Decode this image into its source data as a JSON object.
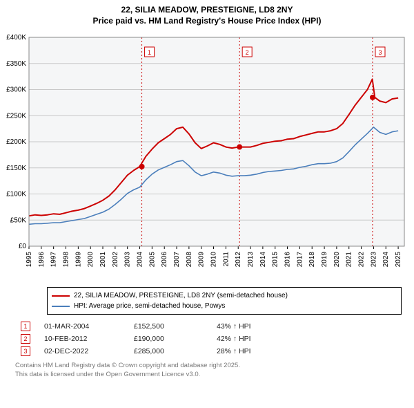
{
  "title_line1": "22, SILIA MEADOW, PRESTEIGNE, LD8 2NY",
  "title_line2": "Price paid vs. HM Land Registry's House Price Index (HPI)",
  "chart": {
    "type": "line",
    "plot_bg": "#f5f6f7",
    "grid_color": "#c8c8c8",
    "x_min": 1995,
    "x_max": 2025.5,
    "y_min": 0,
    "y_max": 400000,
    "y_ticks": [
      0,
      50000,
      100000,
      150000,
      200000,
      250000,
      300000,
      350000,
      400000
    ],
    "y_tick_labels": [
      "£0",
      "£50K",
      "£100K",
      "£150K",
      "£200K",
      "£250K",
      "£300K",
      "£350K",
      "£400K"
    ],
    "x_ticks": [
      1995,
      1996,
      1997,
      1998,
      1999,
      2000,
      2001,
      2002,
      2003,
      2004,
      2005,
      2006,
      2007,
      2008,
      2009,
      2010,
      2011,
      2012,
      2013,
      2014,
      2015,
      2016,
      2017,
      2018,
      2019,
      2020,
      2021,
      2022,
      2023,
      2024,
      2025
    ],
    "series": [
      {
        "name": "22, SILIA MEADOW, PRESTEIGNE, LD8 2NY (semi-detached house)",
        "color": "#cc0000",
        "width": 2,
        "data": [
          [
            1995,
            58000
          ],
          [
            1995.5,
            60000
          ],
          [
            1996,
            59000
          ],
          [
            1996.5,
            60000
          ],
          [
            1997,
            62000
          ],
          [
            1997.5,
            61000
          ],
          [
            1998,
            64000
          ],
          [
            1998.5,
            67000
          ],
          [
            1999,
            69000
          ],
          [
            1999.5,
            72000
          ],
          [
            2000,
            77000
          ],
          [
            2000.5,
            82000
          ],
          [
            2001,
            88000
          ],
          [
            2001.5,
            96000
          ],
          [
            2002,
            108000
          ],
          [
            2002.5,
            122000
          ],
          [
            2003,
            136000
          ],
          [
            2003.5,
            145000
          ],
          [
            2004,
            152500
          ],
          [
            2004.5,
            172000
          ],
          [
            2005,
            186000
          ],
          [
            2005.5,
            198000
          ],
          [
            2006,
            206000
          ],
          [
            2006.5,
            214000
          ],
          [
            2007,
            225000
          ],
          [
            2007.5,
            228000
          ],
          [
            2008,
            215000
          ],
          [
            2008.5,
            198000
          ],
          [
            2009,
            187000
          ],
          [
            2009.5,
            192000
          ],
          [
            2010,
            198000
          ],
          [
            2010.5,
            195000
          ],
          [
            2011,
            190000
          ],
          [
            2011.5,
            188000
          ],
          [
            2012,
            190000
          ],
          [
            2012.5,
            190000
          ],
          [
            2013,
            190000
          ],
          [
            2013.5,
            193000
          ],
          [
            2014,
            197000
          ],
          [
            2014.5,
            199000
          ],
          [
            2015,
            201000
          ],
          [
            2015.5,
            202000
          ],
          [
            2016,
            205000
          ],
          [
            2016.5,
            206000
          ],
          [
            2017,
            210000
          ],
          [
            2017.5,
            213000
          ],
          [
            2018,
            216000
          ],
          [
            2018.5,
            219000
          ],
          [
            2019,
            219000
          ],
          [
            2019.5,
            221000
          ],
          [
            2020,
            225000
          ],
          [
            2020.5,
            235000
          ],
          [
            2021,
            252000
          ],
          [
            2021.5,
            270000
          ],
          [
            2022,
            285000
          ],
          [
            2022.5,
            300000
          ],
          [
            2022.9,
            320000
          ],
          [
            2023.1,
            285000
          ],
          [
            2023.5,
            278000
          ],
          [
            2024,
            275000
          ],
          [
            2024.5,
            282000
          ],
          [
            2025,
            284000
          ]
        ]
      },
      {
        "name": "HPI: Average price, semi-detached house, Powys",
        "color": "#4a7ebb",
        "width": 1.6,
        "data": [
          [
            1995,
            42000
          ],
          [
            1995.5,
            43000
          ],
          [
            1996,
            43000
          ],
          [
            1996.5,
            44000
          ],
          [
            1997,
            45000
          ],
          [
            1997.5,
            45000
          ],
          [
            1998,
            47000
          ],
          [
            1998.5,
            49000
          ],
          [
            1999,
            51000
          ],
          [
            1999.5,
            53000
          ],
          [
            2000,
            57000
          ],
          [
            2000.5,
            61000
          ],
          [
            2001,
            65000
          ],
          [
            2001.5,
            71000
          ],
          [
            2002,
            80000
          ],
          [
            2002.5,
            90000
          ],
          [
            2003,
            101000
          ],
          [
            2003.5,
            108000
          ],
          [
            2004,
            113000
          ],
          [
            2004.5,
            127000
          ],
          [
            2005,
            138000
          ],
          [
            2005.5,
            146000
          ],
          [
            2006,
            151000
          ],
          [
            2006.5,
            156000
          ],
          [
            2007,
            162000
          ],
          [
            2007.5,
            164000
          ],
          [
            2008,
            154000
          ],
          [
            2008.5,
            142000
          ],
          [
            2009,
            135000
          ],
          [
            2009.5,
            138000
          ],
          [
            2010,
            142000
          ],
          [
            2010.5,
            140000
          ],
          [
            2011,
            136000
          ],
          [
            2011.5,
            134000
          ],
          [
            2012,
            135000
          ],
          [
            2012.5,
            135000
          ],
          [
            2013,
            136000
          ],
          [
            2013.5,
            138000
          ],
          [
            2014,
            141000
          ],
          [
            2014.5,
            143000
          ],
          [
            2015,
            144000
          ],
          [
            2015.5,
            145000
          ],
          [
            2016,
            147000
          ],
          [
            2016.5,
            148000
          ],
          [
            2017,
            151000
          ],
          [
            2017.5,
            153000
          ],
          [
            2018,
            156000
          ],
          [
            2018.5,
            158000
          ],
          [
            2019,
            158000
          ],
          [
            2019.5,
            159000
          ],
          [
            2020,
            162000
          ],
          [
            2020.5,
            169000
          ],
          [
            2021,
            181000
          ],
          [
            2021.5,
            194000
          ],
          [
            2022,
            205000
          ],
          [
            2022.5,
            216000
          ],
          [
            2023,
            228000
          ],
          [
            2023.5,
            218000
          ],
          [
            2024,
            214000
          ],
          [
            2024.5,
            219000
          ],
          [
            2025,
            221000
          ]
        ]
      }
    ],
    "sale_markers": [
      {
        "n": "1",
        "x": 2004.17,
        "y": 152500
      },
      {
        "n": "2",
        "x": 2012.11,
        "y": 190000
      },
      {
        "n": "3",
        "x": 2022.92,
        "y": 285000
      }
    ],
    "marker_fill": "#cc0000",
    "marker_label_border": "#cc0000",
    "marker_vline_color": "#cc0000"
  },
  "legend": {
    "items": [
      {
        "color": "#cc0000",
        "label": "22, SILIA MEADOW, PRESTEIGNE, LD8 2NY (semi-detached house)"
      },
      {
        "color": "#4a7ebb",
        "label": "HPI: Average price, semi-detached house, Powys"
      }
    ]
  },
  "events": [
    {
      "n": "1",
      "date": "01-MAR-2004",
      "price": "£152,500",
      "pct": "43% ↑ HPI"
    },
    {
      "n": "2",
      "date": "10-FEB-2012",
      "price": "£190,000",
      "pct": "42% ↑ HPI"
    },
    {
      "n": "3",
      "date": "02-DEC-2022",
      "price": "£285,000",
      "pct": "28% ↑ HPI"
    }
  ],
  "footer_line1": "Contains HM Land Registry data © Crown copyright and database right 2025.",
  "footer_line2": "This data is licensed under the Open Government Licence v3.0."
}
